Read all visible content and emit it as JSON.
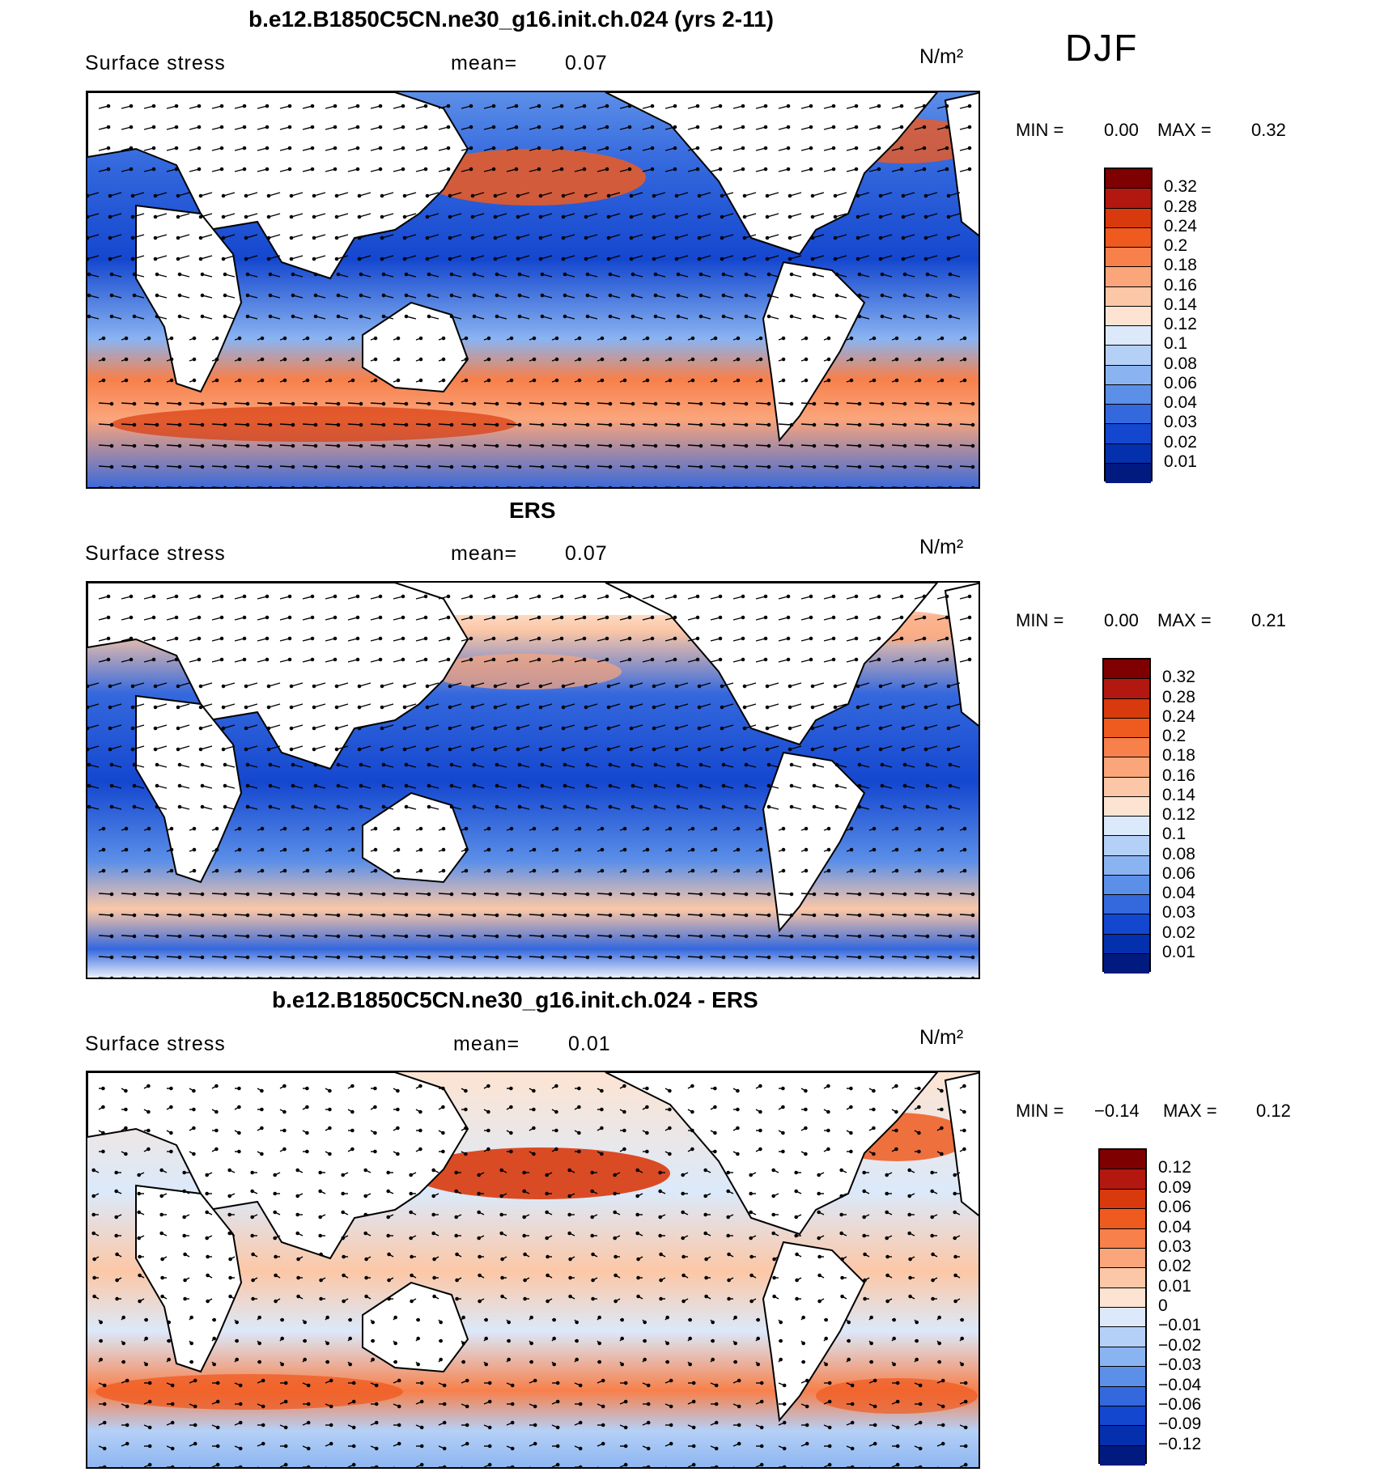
{
  "season": "DJF",
  "panels": [
    {
      "title": "b.e12.B1850C5CN.ne30_g16.init.ch.024 (yrs 2-11)",
      "variable": "Surface stress",
      "mean_label": "mean=",
      "mean_value": "0.07",
      "units": "N/m²",
      "min_label": "MIN =",
      "min_value": "0.00",
      "max_label": "MAX =",
      "max_value": "0.32",
      "colorbar_labels": [
        "0.32",
        "0.28",
        "0.24",
        "0.2",
        "0.18",
        "0.16",
        "0.14",
        "0.12",
        "0.1",
        "0.08",
        "0.06",
        "0.04",
        "0.03",
        "0.02",
        "0.01"
      ],
      "colors": [
        "#7f0000",
        "#b2180f",
        "#d83a0d",
        "#ef5a1f",
        "#f7804b",
        "#fba57b",
        "#fcc7a6",
        "#fde4d2",
        "#dbe9fa",
        "#b5d0f7",
        "#8ab4f1",
        "#5c8fe8",
        "#3468dd",
        "#1447cf",
        "#0530ad",
        "#001a80"
      ]
    },
    {
      "title": "ERS",
      "variable": "Surface stress",
      "mean_label": "mean=",
      "mean_value": "0.07",
      "units": "N/m²",
      "min_label": "MIN =",
      "min_value": "0.00",
      "max_label": "MAX =",
      "max_value": "0.21",
      "colorbar_labels": [
        "0.32",
        "0.28",
        "0.24",
        "0.2",
        "0.18",
        "0.16",
        "0.14",
        "0.12",
        "0.1",
        "0.08",
        "0.06",
        "0.04",
        "0.03",
        "0.02",
        "0.01"
      ],
      "colors": [
        "#7f0000",
        "#b2180f",
        "#d83a0d",
        "#ef5a1f",
        "#f7804b",
        "#fba57b",
        "#fcc7a6",
        "#fde4d2",
        "#dbe9fa",
        "#b5d0f7",
        "#8ab4f1",
        "#5c8fe8",
        "#3468dd",
        "#1447cf",
        "#0530ad",
        "#001a80"
      ]
    },
    {
      "title": "b.e12.B1850C5CN.ne30_g16.init.ch.024 - ERS",
      "variable": "Surface stress",
      "mean_label": "mean=",
      "mean_value": "0.01",
      "units": "N/m²",
      "min_label": "MIN =",
      "min_value": "−0.14",
      "max_label": "MAX =",
      "max_value": "0.12",
      "colorbar_labels": [
        "0.12",
        "0.09",
        "0.06",
        "0.04",
        "0.03",
        "0.02",
        "0.01",
        "0",
        "−0.01",
        "−0.02",
        "−0.03",
        "−0.04",
        "−0.06",
        "−0.09",
        "−0.12"
      ],
      "colors": [
        "#7f0000",
        "#b2180f",
        "#d83a0d",
        "#ef5a1f",
        "#f7804b",
        "#fba57b",
        "#fcc7a6",
        "#fde4d2",
        "#dbe9fa",
        "#b5d0f7",
        "#8ab4f1",
        "#5c8fe8",
        "#3468dd",
        "#1447cf",
        "#0530ad",
        "#001a80"
      ]
    }
  ]
}
